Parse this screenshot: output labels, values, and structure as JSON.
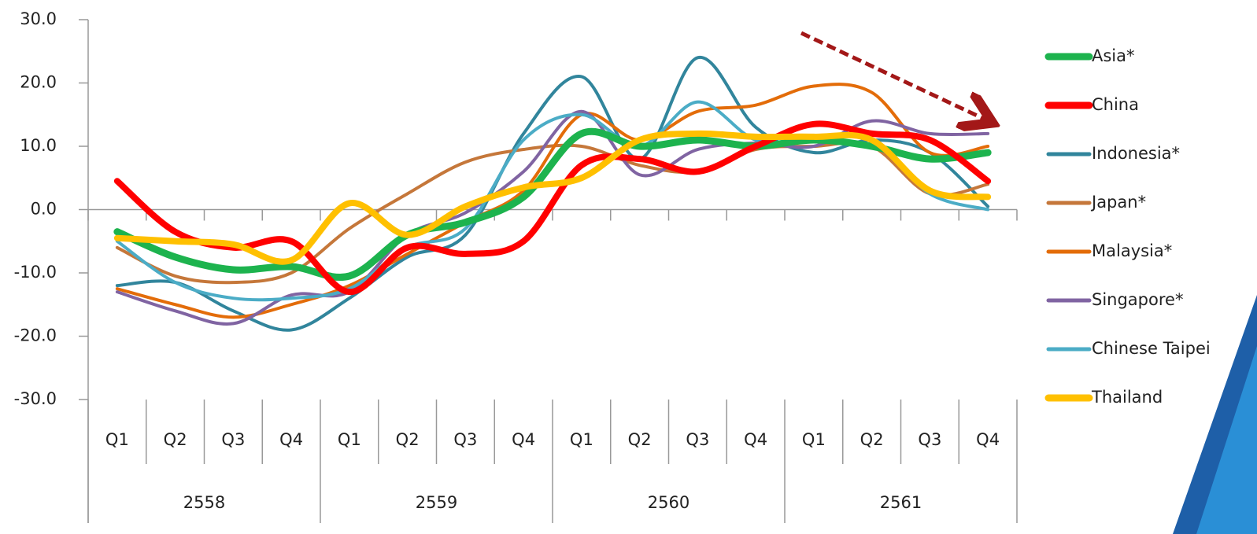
{
  "chart_data": {
    "type": "line",
    "categories": [
      "Q1",
      "Q2",
      "Q3",
      "Q4",
      "Q1",
      "Q2",
      "Q3",
      "Q4",
      "Q1",
      "Q2",
      "Q3",
      "Q4",
      "Q1",
      "Q2",
      "Q3",
      "Q4"
    ],
    "category_groups": [
      "2558",
      "2559",
      "2560",
      "2561"
    ],
    "ylim": [
      -30,
      30
    ],
    "yticks": [
      {
        "value": -30,
        "label": "-30.0"
      },
      {
        "value": -20,
        "label": "-20.0"
      },
      {
        "value": -10,
        "label": "-10.0"
      },
      {
        "value": 0,
        "label": "0.0"
      },
      {
        "value": 10,
        "label": "10.0"
      },
      {
        "value": 20,
        "label": "20.0"
      },
      {
        "value": 30,
        "label": "30.0"
      }
    ],
    "legend": "right",
    "series": [
      {
        "name": "Asia*",
        "color": "#1db34e",
        "values": [
          -3.5,
          -7.5,
          -9.5,
          -9,
          -10.5,
          -4,
          -2,
          2,
          12,
          10,
          11,
          10,
          11,
          10,
          8,
          9
        ]
      },
      {
        "name": "China",
        "color": "#ff0000",
        "values": [
          4.5,
          -3.5,
          -6,
          -5,
          -13,
          -6,
          -7,
          -5,
          7,
          8,
          6,
          10,
          13.5,
          12,
          11,
          4.5
        ]
      },
      {
        "name": "Indonesia*",
        "color": "#31859c",
        "values": [
          -12,
          -11.5,
          -16,
          -19,
          -14,
          -7.5,
          -4,
          12,
          21,
          8,
          24,
          13,
          9,
          11,
          9,
          0.5
        ]
      },
      {
        "name": "Japan*",
        "color": "#c5773a",
        "values": [
          -6,
          -10.5,
          -11.5,
          -10,
          -3,
          2.5,
          7.5,
          9.5,
          10,
          7,
          6,
          9.5,
          10,
          10,
          2.5,
          4
        ]
      },
      {
        "name": "Malaysia*",
        "color": "#e36c09",
        "values": [
          -12.5,
          -15,
          -17,
          -15,
          -12,
          -7,
          -2,
          3,
          15,
          11,
          15.5,
          16.5,
          19.5,
          18.5,
          9,
          10
        ]
      },
      {
        "name": "Singapore*",
        "color": "#8064a2",
        "values": [
          -13,
          -16,
          -18,
          -13.5,
          -13,
          -4,
          -0.5,
          6,
          15.5,
          5.5,
          9.5,
          10.5,
          10,
          14,
          12,
          12
        ]
      },
      {
        "name": "Chinese Taipei",
        "color": "#4bacc6",
        "values": [
          -5,
          -11.5,
          -14,
          -14,
          -12.5,
          -6,
          -3,
          11,
          15,
          10,
          17,
          11,
          11,
          11,
          2.5,
          0
        ]
      },
      {
        "name": "Thailand",
        "color": "#ffc000",
        "values": [
          -4.5,
          -5,
          -5.5,
          -8,
          1,
          -4,
          0.5,
          3.5,
          5,
          11,
          12,
          11.5,
          11.5,
          11,
          3,
          2
        ]
      }
    ]
  }
}
